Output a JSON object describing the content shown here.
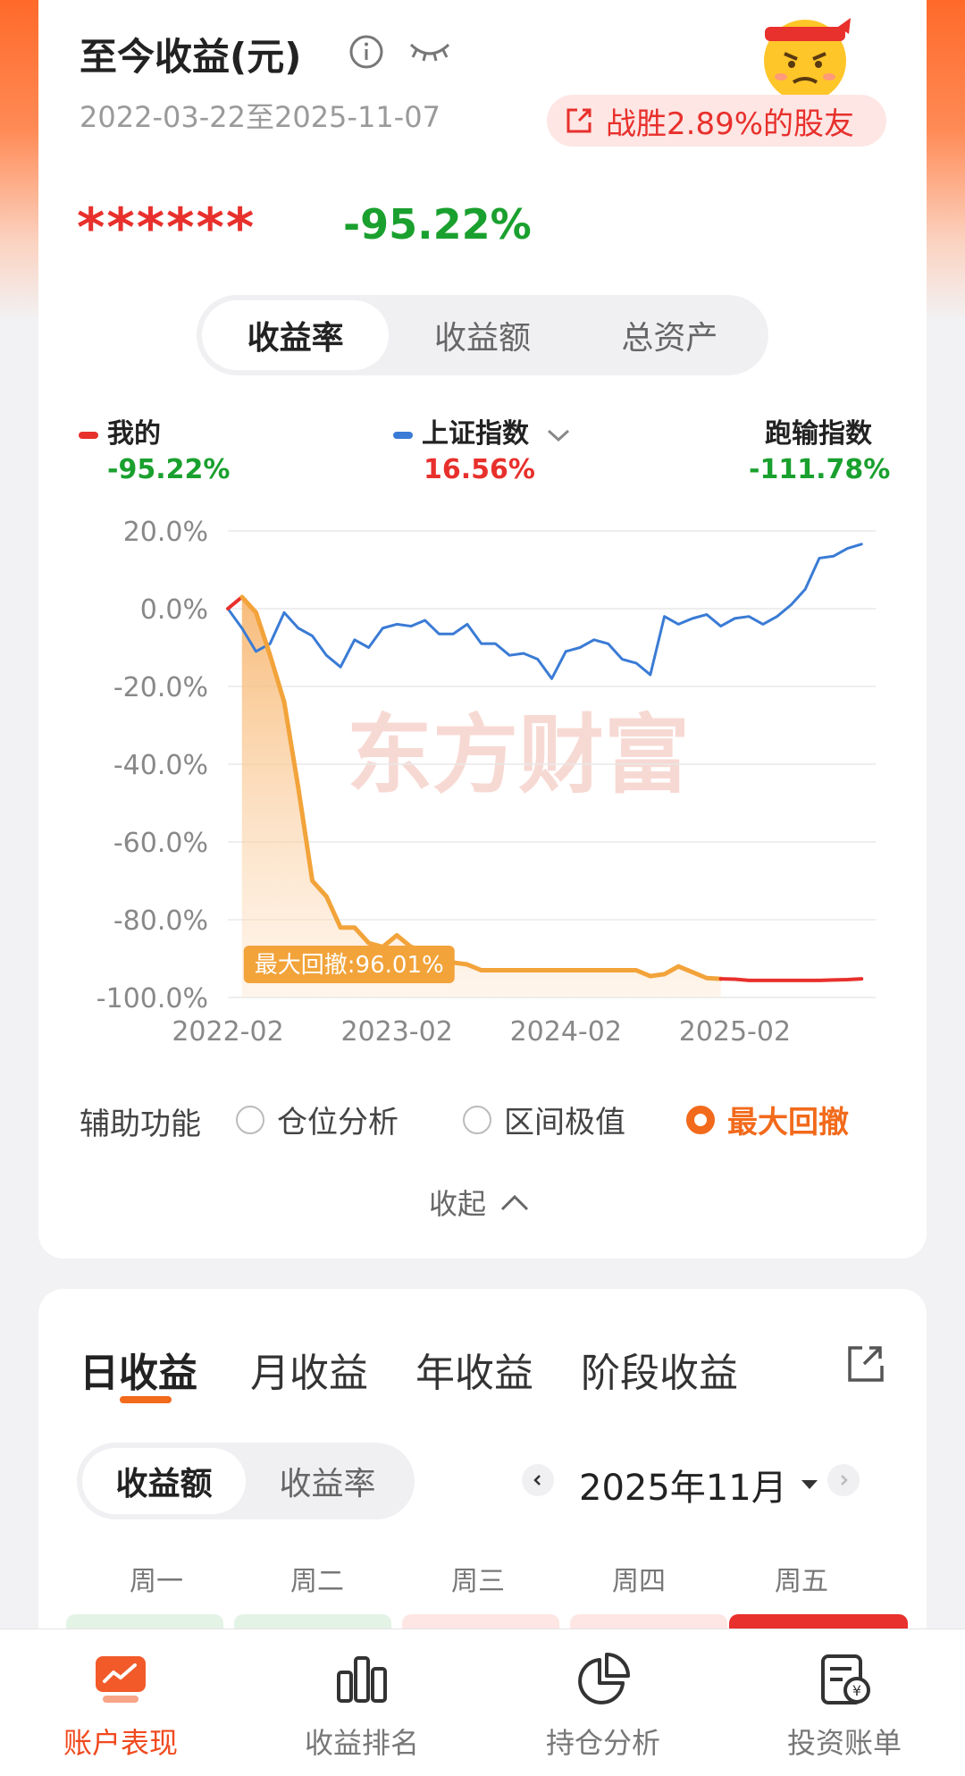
{
  "header": {
    "title": "至今收益(元)",
    "date_range": "2022-03-22至2025-11-07",
    "share_badge": "战胜2.89%的股友",
    "masked_amount": "******",
    "total_rate": "-95.22%"
  },
  "segment_main": {
    "tabs": [
      "收益率",
      "收益额",
      "总资产"
    ],
    "active": "收益率"
  },
  "legend": {
    "mine": {
      "label": "我的",
      "value": "-95.22%",
      "color": "#e8302c"
    },
    "index": {
      "label": "上证指数",
      "value": "16.56%",
      "color": "#3a7bd5"
    },
    "diff": {
      "label": "跑输指数",
      "value": "-111.78%"
    }
  },
  "colors": {
    "gain": "#e8302c",
    "loss": "#1aa02e",
    "accent": "#f26a1b",
    "portfolio_line": "#f2a33a"
  },
  "watermark": "东方财富",
  "chart_data": {
    "type": "line",
    "y_tick_labels": [
      "20.0%",
      "0.0%",
      "-20.0%",
      "-40.0%",
      "-60.0%",
      "-80.0%",
      "-100.0%"
    ],
    "x_tick_labels": [
      "2022-02",
      "2023-02",
      "2024-02",
      "2025-02"
    ],
    "ylim": [
      -100,
      20
    ],
    "xlim": [
      0,
      46
    ],
    "x_ticks_at": [
      0,
      12,
      24,
      36
    ],
    "grid": true,
    "annotation": "最大回撤:96.01%",
    "series": [
      {
        "name": "我的",
        "color": "#f2a33a",
        "x": [
          0,
          1,
          2,
          3,
          4,
          5,
          6,
          7,
          8,
          9,
          10,
          11,
          12,
          13,
          14,
          15,
          16,
          17,
          18,
          19,
          20,
          21,
          22,
          23,
          24,
          25,
          26,
          27,
          28,
          29,
          30,
          31,
          32,
          33,
          34,
          35,
          36,
          37,
          38,
          39,
          40,
          41,
          42,
          43,
          44,
          45
        ],
        "y": [
          0,
          3,
          -1,
          -12,
          -24,
          -46,
          -70,
          -74,
          -82,
          -82,
          -86,
          -87,
          -84,
          -87,
          -88,
          -89,
          -91,
          -91.5,
          -93,
          -93,
          -93,
          -93,
          -93,
          -93,
          -93,
          -93,
          -93,
          -93,
          -93,
          -93,
          -94.5,
          -94,
          -92,
          -93.5,
          -95,
          -95.2,
          -95.3,
          -95.6,
          -95.6,
          -95.6,
          -95.6,
          -95.6,
          -95.6,
          -95.5,
          -95.4,
          -95.2
        ]
      },
      {
        "name": "上证指数",
        "color": "#3a7bd5",
        "x": [
          0,
          1,
          2,
          3,
          4,
          5,
          6,
          7,
          8,
          9,
          10,
          11,
          12,
          13,
          14,
          15,
          16,
          17,
          18,
          19,
          20,
          21,
          22,
          23,
          24,
          25,
          26,
          27,
          28,
          29,
          30,
          31,
          32,
          33,
          34,
          35,
          36,
          37,
          38,
          39,
          40,
          41,
          42,
          43,
          44,
          45
        ],
        "y": [
          0,
          -5,
          -11,
          -9,
          -1,
          -5,
          -7,
          -12,
          -15,
          -8,
          -10,
          -5,
          -4,
          -4.5,
          -3,
          -6.5,
          -6.5,
          -4,
          -9,
          -9,
          -12,
          -11.5,
          -13,
          -18,
          -11,
          -10,
          -8,
          -9,
          -13,
          -14,
          -17,
          -2,
          -4,
          -2.5,
          -1.5,
          -4.5,
          -2.5,
          -2,
          -4,
          -2,
          1,
          5,
          13,
          13.5,
          15.5,
          16.6
        ]
      }
    ]
  },
  "aux": {
    "label": "辅助功能",
    "options": [
      "仓位分析",
      "区间极值",
      "最大回撤"
    ],
    "selected": "最大回撤"
  },
  "collapse_label": "收起",
  "period_tabs": [
    "日收益",
    "月收益",
    "年收益",
    "阶段收益"
  ],
  "period_active": "日收益",
  "segment_daily": {
    "tabs": [
      "收益额",
      "收益率"
    ],
    "active": "收益额"
  },
  "month_label": "2025年11月",
  "weekdays": [
    "周一",
    "周二",
    "周三",
    "周四",
    "周五"
  ],
  "nav": [
    {
      "label": "账户表现",
      "icon": "account-performance-icon"
    },
    {
      "label": "收益排名",
      "icon": "bar-ranking-icon"
    },
    {
      "label": "持仓分析",
      "icon": "pie-chart-icon"
    },
    {
      "label": "投资账单",
      "icon": "bill-icon"
    }
  ],
  "nav_active": "账户表现"
}
